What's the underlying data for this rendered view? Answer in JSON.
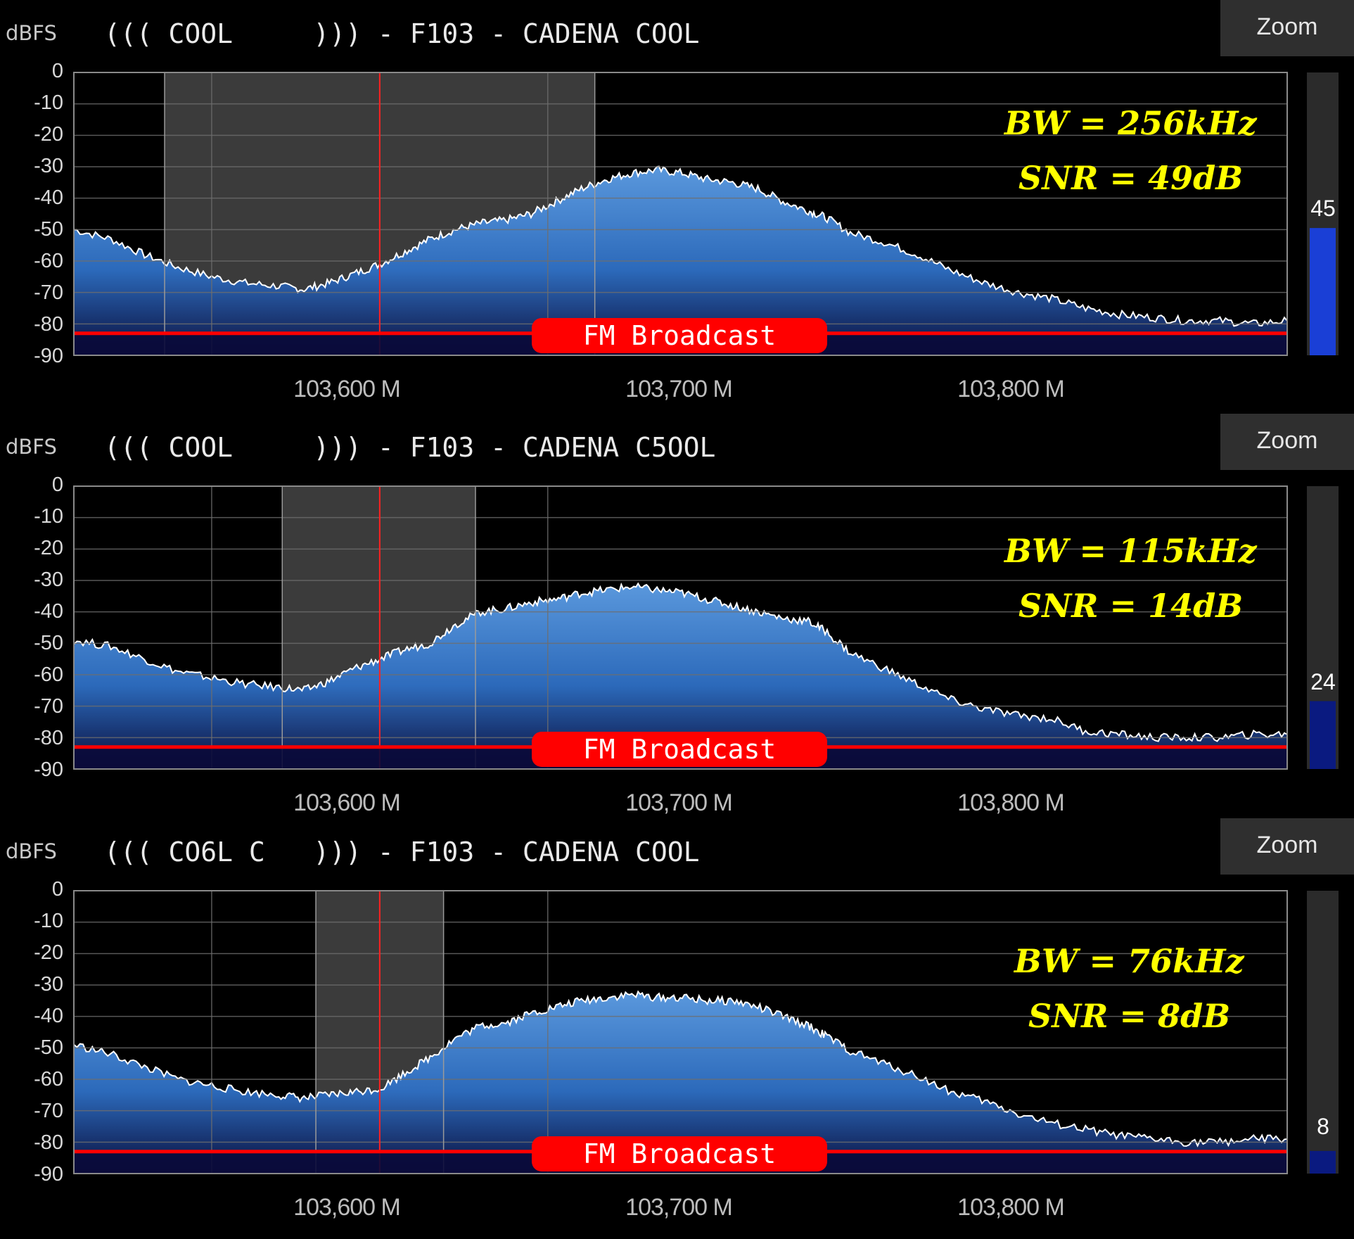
{
  "panels": [
    {
      "unit": "dBFS",
      "title": "((( COOL     ))) - F103 - CADENA COOL",
      "zoom": "Zoom",
      "yticks": [
        "0",
        "-10",
        "-20",
        "-30",
        "-40",
        "-50",
        "-60",
        "-70",
        "-80",
        "-90"
      ],
      "xticks": [
        "103,600 M",
        "103,700 M",
        "103,800 M"
      ],
      "bw": "BW = 256kHz",
      "snr": "SNR = 49dB",
      "band": "FM Broadcast",
      "meter": "45",
      "meter_level": 0.45,
      "meter_color": "#1a3fd6",
      "filter_mhz": [
        103.572,
        103.828
      ],
      "spectrum": [
        [
          103.518,
          -50
        ],
        [
          103.54,
          -53
        ],
        [
          103.56,
          -58
        ],
        [
          103.58,
          -62
        ],
        [
          103.6,
          -65
        ],
        [
          103.62,
          -67
        ],
        [
          103.64,
          -68
        ],
        [
          103.655,
          -69
        ],
        [
          103.67,
          -67
        ],
        [
          103.685,
          -64
        ],
        [
          103.7,
          -61
        ],
        [
          103.715,
          -57
        ],
        [
          103.73,
          -53
        ],
        [
          103.745,
          -50
        ],
        [
          103.76,
          -48
        ],
        [
          103.775,
          -47
        ],
        [
          103.79,
          -45
        ],
        [
          103.805,
          -41
        ],
        [
          103.82,
          -37
        ],
        [
          103.835,
          -34
        ],
        [
          103.85,
          -32
        ],
        [
          103.865,
          -31
        ],
        [
          103.88,
          -32
        ],
        [
          103.895,
          -34
        ],
        [
          103.91,
          -35
        ],
        [
          103.925,
          -37
        ],
        [
          103.94,
          -41
        ],
        [
          103.955,
          -44
        ],
        [
          103.965,
          -46
        ],
        [
          103.98,
          -51
        ],
        [
          104.0,
          -54
        ],
        [
          104.02,
          -58
        ],
        [
          104.04,
          -63
        ],
        [
          104.06,
          -67
        ],
        [
          104.08,
          -70
        ],
        [
          104.1,
          -72
        ],
        [
          104.12,
          -75
        ],
        [
          104.14,
          -77
        ],
        [
          104.16,
          -78
        ],
        [
          104.18,
          -79
        ],
        [
          104.2,
          -79
        ],
        [
          104.22,
          -80
        ],
        [
          104.24,
          -79
        ]
      ]
    },
    {
      "unit": "dBFS",
      "title": "((( COOL     ))) - F103 - CADENA C5OOL",
      "zoom": "Zoom",
      "yticks": [
        "0",
        "-10",
        "-20",
        "-30",
        "-40",
        "-50",
        "-60",
        "-70",
        "-80",
        "-90"
      ],
      "xticks": [
        "103,600 M",
        "103,700 M",
        "103,800 M"
      ],
      "bw": "BW = 115kHz",
      "snr": "SNR = 14dB",
      "band": "FM Broadcast",
      "meter": "24",
      "meter_level": 0.24,
      "meter_color": "#0a1a80",
      "filter_mhz": [
        103.642,
        103.757
      ],
      "spectrum": [
        [
          103.518,
          -49
        ],
        [
          103.54,
          -51
        ],
        [
          103.56,
          -55
        ],
        [
          103.58,
          -59
        ],
        [
          103.6,
          -61
        ],
        [
          103.62,
          -63
        ],
        [
          103.64,
          -64
        ],
        [
          103.655,
          -65
        ],
        [
          103.67,
          -62
        ],
        [
          103.685,
          -58
        ],
        [
          103.7,
          -55
        ],
        [
          103.715,
          -52
        ],
        [
          103.73,
          -50
        ],
        [
          103.745,
          -44
        ],
        [
          103.76,
          -40
        ],
        [
          103.775,
          -39
        ],
        [
          103.79,
          -37
        ],
        [
          103.805,
          -36
        ],
        [
          103.82,
          -34
        ],
        [
          103.835,
          -33
        ],
        [
          103.85,
          -32
        ],
        [
          103.865,
          -33
        ],
        [
          103.88,
          -34
        ],
        [
          103.895,
          -36
        ],
        [
          103.91,
          -38
        ],
        [
          103.925,
          -40
        ],
        [
          103.94,
          -42
        ],
        [
          103.955,
          -43
        ],
        [
          103.965,
          -46
        ],
        [
          103.98,
          -53
        ],
        [
          104.0,
          -58
        ],
        [
          104.02,
          -63
        ],
        [
          104.04,
          -68
        ],
        [
          104.06,
          -71
        ],
        [
          104.08,
          -73
        ],
        [
          104.1,
          -74
        ],
        [
          104.12,
          -78
        ],
        [
          104.14,
          -79
        ],
        [
          104.16,
          -80
        ],
        [
          104.18,
          -80
        ],
        [
          104.2,
          -80
        ],
        [
          104.22,
          -79
        ],
        [
          104.24,
          -79
        ]
      ]
    },
    {
      "unit": "dBFS",
      "title": "((( CO6L C   ))) - F103 - CADENA COOL",
      "zoom": "Zoom",
      "yticks": [
        "0",
        "-10",
        "-20",
        "-30",
        "-40",
        "-50",
        "-60",
        "-70",
        "-80",
        "-90"
      ],
      "xticks": [
        "103,600 M",
        "103,700 M",
        "103,800 M"
      ],
      "bw": "BW = 76kHz",
      "snr": "SNR = 8dB",
      "band": "FM Broadcast",
      "meter": "8",
      "meter_level": 0.08,
      "meter_color": "#0a1a80",
      "filter_mhz": [
        103.662,
        103.738
      ],
      "spectrum": [
        [
          103.518,
          -49
        ],
        [
          103.54,
          -52
        ],
        [
          103.56,
          -56
        ],
        [
          103.58,
          -60
        ],
        [
          103.6,
          -62
        ],
        [
          103.62,
          -64
        ],
        [
          103.64,
          -65
        ],
        [
          103.655,
          -66
        ],
        [
          103.67,
          -65
        ],
        [
          103.685,
          -64
        ],
        [
          103.7,
          -63
        ],
        [
          103.715,
          -58
        ],
        [
          103.73,
          -53
        ],
        [
          103.745,
          -47
        ],
        [
          103.76,
          -43
        ],
        [
          103.775,
          -42
        ],
        [
          103.79,
          -39
        ],
        [
          103.805,
          -37
        ],
        [
          103.82,
          -35
        ],
        [
          103.835,
          -34
        ],
        [
          103.85,
          -33
        ],
        [
          103.865,
          -34
        ],
        [
          103.88,
          -34
        ],
        [
          103.895,
          -35
        ],
        [
          103.91,
          -35
        ],
        [
          103.925,
          -37
        ],
        [
          103.94,
          -40
        ],
        [
          103.955,
          -43
        ],
        [
          103.965,
          -46
        ],
        [
          103.98,
          -51
        ],
        [
          104.0,
          -55
        ],
        [
          104.02,
          -59
        ],
        [
          104.04,
          -64
        ],
        [
          104.06,
          -67
        ],
        [
          104.08,
          -71
        ],
        [
          104.1,
          -74
        ],
        [
          104.12,
          -76
        ],
        [
          104.14,
          -78
        ],
        [
          104.16,
          -79
        ],
        [
          104.18,
          -80
        ],
        [
          104.2,
          -80
        ],
        [
          104.22,
          -79
        ],
        [
          104.24,
          -79
        ]
      ]
    }
  ],
  "frequency_axis": {
    "center_mhz": 103.7,
    "grid_mhz": [
      103.6,
      103.7,
      103.8
    ],
    "view_range_mhz": [
      103.518,
      104.24
    ]
  },
  "level_axis": {
    "range_dbfs": [
      -90,
      0
    ],
    "band_marker_dbfs": -83
  },
  "colors": {
    "background": "#000000",
    "filter": "#3b3b3b",
    "grid": "#6e6e6e",
    "center_line": "#ff2020",
    "band": "#ff0000",
    "annotation": "#ffff00",
    "trace": "#ffffff",
    "fill_top": "#5fa0e8",
    "fill_bottom": "#0a0f40"
  }
}
